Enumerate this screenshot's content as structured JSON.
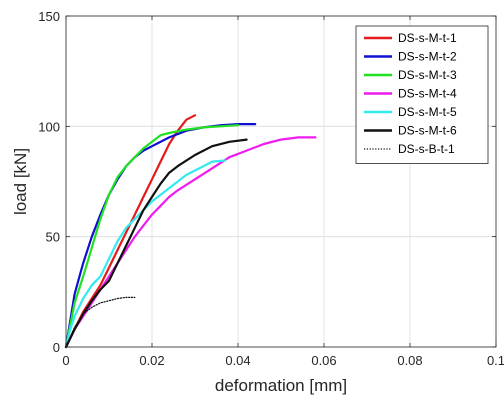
{
  "chart_data": {
    "type": "line",
    "title": "",
    "xlabel": "deformation [mm]",
    "ylabel": "load [kN]",
    "xlim": [
      0,
      0.1
    ],
    "ylim": [
      0,
      150
    ],
    "xticks": [
      0,
      0.02,
      0.04,
      0.06,
      0.08,
      0.1
    ],
    "xtick_labels": [
      "0",
      "0.02",
      "0.04",
      "0.06",
      "0.08",
      "0.1"
    ],
    "yticks": [
      0,
      50,
      100,
      150
    ],
    "ytick_labels": [
      "0",
      "50",
      "100",
      "150"
    ],
    "grid": true,
    "legend_position": "top-right",
    "series": [
      {
        "name": "DS-s-M-t-1",
        "color": "#e41a1c",
        "style": "solid",
        "x": [
          0,
          0.002,
          0.004,
          0.006,
          0.008,
          0.01,
          0.012,
          0.014,
          0.016,
          0.018,
          0.02,
          0.022,
          0.024,
          0.026,
          0.028,
          0.03
        ],
        "y": [
          0,
          8,
          16,
          22,
          28,
          36,
          44,
          52,
          60,
          68,
          76,
          84,
          92,
          98,
          103,
          105
        ]
      },
      {
        "name": "DS-s-M-t-2",
        "color": "#1010d0",
        "style": "solid",
        "x": [
          0,
          0.001,
          0.002,
          0.004,
          0.006,
          0.008,
          0.01,
          0.012,
          0.014,
          0.016,
          0.018,
          0.02,
          0.024,
          0.028,
          0.032,
          0.036,
          0.04,
          0.044
        ],
        "y": [
          0,
          12,
          24,
          38,
          50,
          60,
          69,
          76,
          82,
          86,
          89,
          91,
          95,
          98,
          99.5,
          100.5,
          101,
          101
        ]
      },
      {
        "name": "DS-s-M-t-3",
        "color": "#22e022",
        "style": "solid",
        "x": [
          0,
          0.001,
          0.002,
          0.004,
          0.006,
          0.008,
          0.01,
          0.012,
          0.014,
          0.016,
          0.018,
          0.02,
          0.022,
          0.024,
          0.028,
          0.032,
          0.036,
          0.04
        ],
        "y": [
          0,
          10,
          20,
          32,
          45,
          58,
          69,
          77,
          82,
          86,
          90,
          93,
          96,
          97,
          98.5,
          99.5,
          100,
          100.5
        ]
      },
      {
        "name": "DS-s-M-t-4",
        "color": "#ee1cee",
        "style": "solid",
        "x": [
          0,
          0.002,
          0.004,
          0.006,
          0.008,
          0.01,
          0.012,
          0.014,
          0.016,
          0.018,
          0.02,
          0.022,
          0.024,
          0.026,
          0.03,
          0.034,
          0.038,
          0.042,
          0.046,
          0.05,
          0.054,
          0.058
        ],
        "y": [
          0,
          8,
          14,
          20,
          26,
          32,
          38,
          44,
          50,
          55,
          60,
          64,
          68,
          71,
          76,
          81,
          86,
          89,
          92,
          94,
          95,
          95
        ]
      },
      {
        "name": "DS-s-M-t-5",
        "color": "#33eaf0",
        "style": "solid",
        "x": [
          0,
          0.001,
          0.002,
          0.004,
          0.006,
          0.008,
          0.01,
          0.012,
          0.014,
          0.016,
          0.018,
          0.02,
          0.022,
          0.024,
          0.026,
          0.028,
          0.03,
          0.032,
          0.034,
          0.037
        ],
        "y": [
          0,
          8,
          14,
          22,
          28,
          32,
          40,
          48,
          54,
          58,
          62,
          66,
          69,
          72,
          75,
          78,
          80,
          82,
          84,
          84.5
        ]
      },
      {
        "name": "DS-s-M-t-6",
        "color": "#111111",
        "style": "solid",
        "x": [
          0,
          0.002,
          0.004,
          0.006,
          0.008,
          0.01,
          0.012,
          0.014,
          0.016,
          0.018,
          0.02,
          0.022,
          0.024,
          0.026,
          0.03,
          0.034,
          0.038,
          0.042
        ],
        "y": [
          0,
          8,
          15,
          21,
          26,
          30,
          38,
          46,
          54,
          62,
          68,
          74,
          79,
          82,
          87,
          91,
          93,
          94
        ]
      },
      {
        "name": "DS-s-B-t-1",
        "color": "#111111",
        "style": "dotted",
        "x": [
          0,
          0.002,
          0.004,
          0.006,
          0.008,
          0.01,
          0.012,
          0.014,
          0.016
        ],
        "y": [
          0,
          9,
          15,
          18,
          20,
          21,
          22,
          22.5,
          22.5
        ]
      }
    ]
  }
}
